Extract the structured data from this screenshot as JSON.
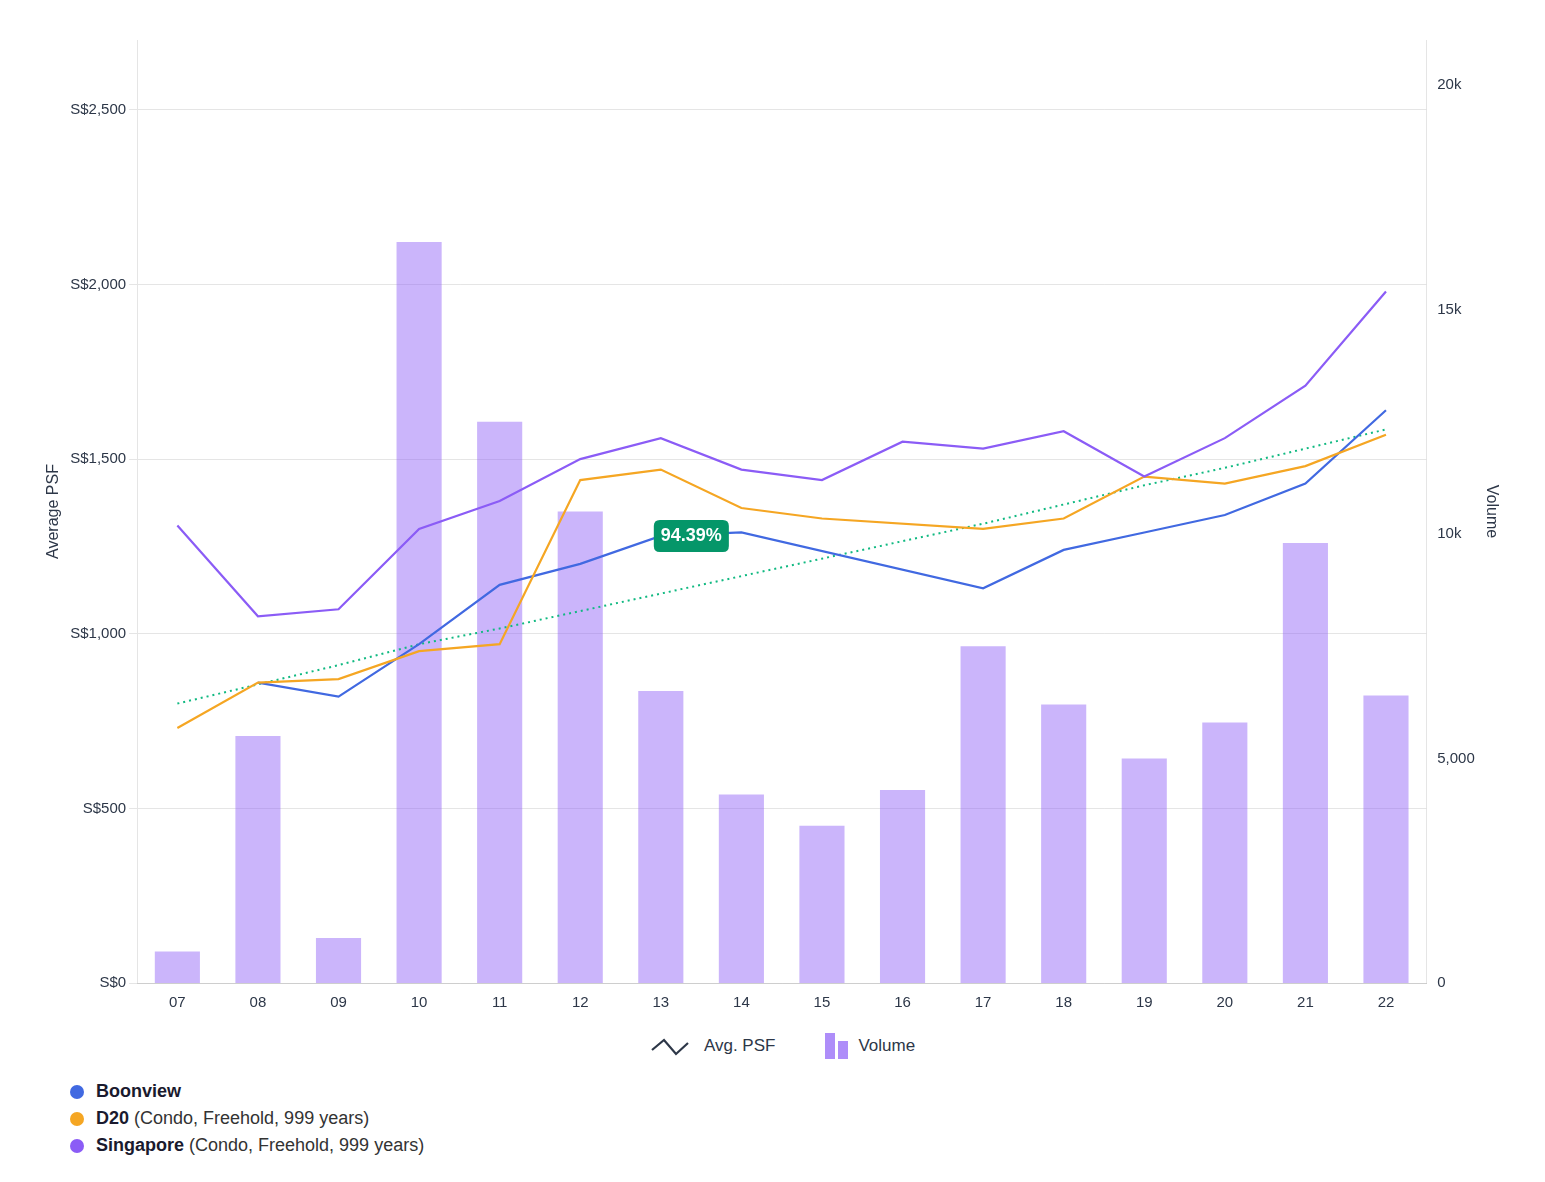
{
  "chart_data": {
    "type": "bar",
    "categories": [
      "07",
      "08",
      "09",
      "10",
      "11",
      "12",
      "13",
      "14",
      "15",
      "16",
      "17",
      "18",
      "19",
      "20",
      "21",
      "22"
    ],
    "series": [
      {
        "name": "Volume",
        "type": "bar",
        "axis": "y2",
        "color": "#8B5CF6",
        "values": [
          700,
          5500,
          1000,
          16500,
          12500,
          10500,
          6500,
          4200,
          3500,
          4300,
          7500,
          6200,
          5000,
          5800,
          9800,
          6400
        ]
      },
      {
        "name": "Singapore (Condo, Freehold, 999 years)",
        "type": "line",
        "color": "#8B5CF6",
        "values": [
          1310,
          1050,
          1070,
          1300,
          1380,
          1500,
          1560,
          1470,
          1440,
          1550,
          1530,
          1580,
          1450,
          1560,
          1710,
          1980
        ]
      },
      {
        "name": "D20 (Condo, Freehold, 999 years)",
        "type": "line",
        "color": "#F5A623",
        "values": [
          730,
          860,
          870,
          950,
          970,
          1440,
          1470,
          1360,
          1330,
          null,
          1300,
          1330,
          1450,
          1430,
          1480,
          1570
        ]
      },
      {
        "name": "Boonview",
        "type": "line",
        "color": "#4169E1",
        "values": [
          null,
          860,
          820,
          970,
          1140,
          1200,
          1280,
          1290,
          null,
          null,
          1130,
          1240,
          1290,
          1340,
          1430,
          1640
        ]
      },
      {
        "type": "line",
        "color": "#10B981",
        "line_style": "dotted",
        "values": [
          800,
          855,
          910,
          970,
          1015,
          1065,
          1115,
          1165,
          1215,
          1265,
          1315,
          1370,
          1425,
          1475,
          1530,
          1585
        ]
      }
    ],
    "ylabel": "Average PSF",
    "y2label": "Volume",
    "ylim": [
      0,
      2700
    ],
    "yticks": [
      {
        "value": 0,
        "label": "S$0"
      },
      {
        "value": 500,
        "label": "S$500"
      },
      {
        "value": 1000,
        "label": "S$1,000"
      },
      {
        "value": 1500,
        "label": "S$1,500"
      },
      {
        "value": 2000,
        "label": "S$2,000"
      },
      {
        "value": 2500,
        "label": "S$2,500"
      }
    ],
    "y2lim": [
      0,
      21000
    ],
    "y2ticks": [
      0,
      {
        "value": 5000,
        "label": "5,000"
      },
      {
        "value": 10000,
        "label": "10k"
      },
      {
        "value": 15000,
        "label": "15k"
      },
      {
        "value": 20000,
        "label": "20k"
      }
    ],
    "grid": true,
    "legend": "bottom",
    "legend_title": "Avg. PSF",
    "annotations": [
      {
        "text": "94.39%",
        "x": "13",
        "y": 1280,
        "color": "#059669"
      }
    ]
  }
}
